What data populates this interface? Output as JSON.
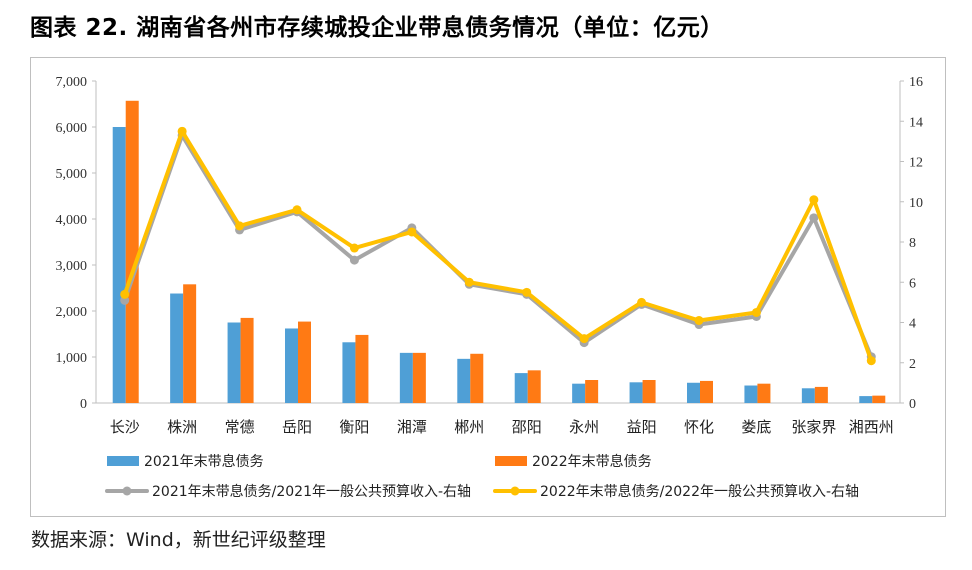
{
  "page": {
    "title": "图表 22. 湖南省各州市存续城投企业带息债务情况（单位：亿元）",
    "source": "数据来源：Wind，新世纪评级整理"
  },
  "chart_data": {
    "type": "bar",
    "title": "图表 22. 湖南省各州市存续城投企业带息债务情况（单位：亿元）",
    "categories": [
      "长沙",
      "株洲",
      "常德",
      "岳阳",
      "衡阳",
      "湘潭",
      "郴州",
      "邵阳",
      "永州",
      "益阳",
      "怀化",
      "娄底",
      "张家界",
      "湘西州"
    ],
    "series": [
      {
        "name": "2021年末带息债务",
        "kind": "bar",
        "axis": "left",
        "color": "#4f9fd6",
        "values": [
          6000,
          2380,
          1750,
          1620,
          1320,
          1090,
          960,
          650,
          420,
          450,
          440,
          380,
          320,
          150
        ]
      },
      {
        "name": "2022年末带息债务",
        "kind": "bar",
        "axis": "left",
        "color": "#ff7a14",
        "values": [
          6570,
          2580,
          1850,
          1770,
          1480,
          1090,
          1070,
          710,
          500,
          500,
          480,
          420,
          350,
          160
        ]
      },
      {
        "name": "2021年末带息债务/2021年一般公共预算收入-右轴",
        "kind": "line",
        "axis": "right",
        "color": "#a6a6a6",
        "values": [
          5.1,
          13.3,
          8.6,
          9.5,
          7.1,
          8.7,
          5.9,
          5.4,
          3.0,
          4.9,
          3.9,
          4.3,
          9.2,
          2.3
        ]
      },
      {
        "name": "2022年末带息债务/2022年一般公共预算收入-右轴",
        "kind": "line",
        "axis": "right",
        "color": "#ffc000",
        "values": [
          5.4,
          13.5,
          8.8,
          9.6,
          7.7,
          8.5,
          6.0,
          5.5,
          3.2,
          5.0,
          4.1,
          4.5,
          10.1,
          2.1
        ]
      }
    ],
    "y_left": {
      "min": 0,
      "max": 7000,
      "ticks": [
        "0",
        "1,000",
        "2,000",
        "3,000",
        "4,000",
        "5,000",
        "6,000",
        "7,000"
      ]
    },
    "y_right": {
      "min": 0,
      "max": 16,
      "ticks": [
        "0",
        "2",
        "4",
        "6",
        "8",
        "10",
        "12",
        "14",
        "16"
      ]
    },
    "grid": false,
    "legend_position": "bottom"
  }
}
